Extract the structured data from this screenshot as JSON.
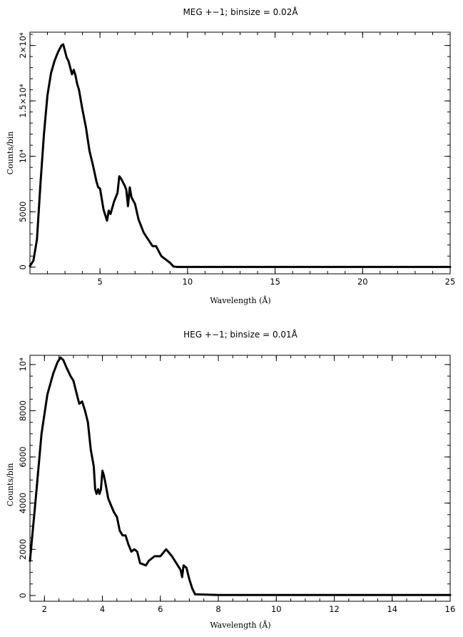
{
  "chart_data": [
    {
      "type": "line",
      "title": "MEG +−1; binsize = 0.02Å",
      "xlabel": "Wavelength (Å)",
      "ylabel": "Counts/bin",
      "xlim": [
        1.0,
        25.0
      ],
      "ylim": [
        -600,
        21200
      ],
      "x_ticks": [
        5,
        10,
        15,
        20,
        25
      ],
      "x_tick_labels": [
        "5",
        "10",
        "15",
        "20",
        "25"
      ],
      "x_minor_step": 1,
      "y_ticks": [
        0,
        5000,
        10000,
        15000,
        20000
      ],
      "y_tick_labels": [
        "0",
        "5000",
        "10⁴",
        "1.5×10⁴",
        "2×10⁴"
      ],
      "y_minor_step": 1000,
      "grid": false,
      "series": [
        {
          "x": [
            1.0,
            1.2,
            1.4,
            1.6,
            1.8,
            2.0,
            2.2,
            2.4,
            2.6,
            2.8,
            2.9,
            3.0,
            3.1,
            3.2,
            3.4,
            3.5,
            3.6,
            3.7,
            3.8,
            4.0,
            4.2,
            4.4,
            4.6,
            4.8,
            4.9,
            5.0,
            5.2,
            5.4,
            5.5,
            5.6,
            5.8,
            6.0,
            6.1,
            6.2,
            6.4,
            6.5,
            6.6,
            6.7,
            6.8,
            7.0,
            7.2,
            7.5,
            8.0,
            8.2,
            8.5,
            9.0,
            9.2,
            9.4,
            10.0,
            15.0,
            20.0,
            25.0
          ],
          "y": [
            100,
            600,
            2500,
            7500,
            12000,
            15500,
            17500,
            18600,
            19400,
            20000,
            20100,
            19500,
            18900,
            18600,
            17400,
            17800,
            17300,
            16500,
            16000,
            14200,
            12600,
            10500,
            9200,
            7700,
            7200,
            7100,
            5200,
            4200,
            5100,
            4800,
            5900,
            6700,
            8200,
            8000,
            7400,
            7000,
            5500,
            7200,
            6300,
            5700,
            4300,
            3100,
            1900,
            1900,
            1000,
            400,
            60,
            20,
            20,
            20,
            20,
            20
          ]
        }
      ]
    },
    {
      "type": "line",
      "title": "HEG +−1; binsize = 0.01Å",
      "xlabel": "Wavelength (Å)",
      "ylabel": "Counts/bin",
      "xlim": [
        1.5,
        16.0
      ],
      "ylim": [
        -250,
        10400
      ],
      "x_ticks": [
        2,
        4,
        6,
        8,
        10,
        12,
        14,
        16
      ],
      "x_tick_labels": [
        "2",
        "4",
        "6",
        "8",
        "10",
        "12",
        "14",
        "16"
      ],
      "x_minor_step": 0.5,
      "y_ticks": [
        0,
        2000,
        4000,
        6000,
        8000,
        10000
      ],
      "y_tick_labels": [
        "0",
        "2000",
        "4000",
        "6000",
        "8000",
        "10⁴"
      ],
      "y_minor_step": 500,
      "grid": false,
      "series": [
        {
          "x": [
            1.5,
            1.7,
            1.9,
            2.1,
            2.3,
            2.45,
            2.55,
            2.65,
            2.75,
            2.9,
            3.0,
            3.1,
            3.2,
            3.3,
            3.4,
            3.5,
            3.6,
            3.7,
            3.75,
            3.8,
            3.85,
            3.9,
            3.95,
            4.0,
            4.05,
            4.1,
            4.2,
            4.3,
            4.4,
            4.5,
            4.6,
            4.7,
            4.8,
            4.9,
            5.0,
            5.1,
            5.2,
            5.3,
            5.5,
            5.6,
            5.8,
            6.0,
            6.2,
            6.4,
            6.6,
            6.7,
            6.75,
            6.8,
            6.9,
            7.0,
            7.1,
            7.2,
            8.0,
            10.0,
            12.0,
            14.0,
            16.0
          ],
          "y": [
            1500,
            4200,
            7000,
            8700,
            9600,
            10100,
            10300,
            10200,
            9900,
            9500,
            9300,
            8800,
            8300,
            8400,
            8000,
            7500,
            6300,
            5600,
            4600,
            4400,
            4600,
            4400,
            4600,
            5400,
            5200,
            4900,
            4200,
            3900,
            3600,
            3400,
            2800,
            2600,
            2600,
            2200,
            1900,
            2000,
            1900,
            1400,
            1300,
            1500,
            1700,
            1700,
            2000,
            1700,
            1300,
            1100,
            800,
            1300,
            1200,
            700,
            300,
            50,
            20,
            20,
            20,
            20,
            20
          ]
        }
      ]
    }
  ]
}
